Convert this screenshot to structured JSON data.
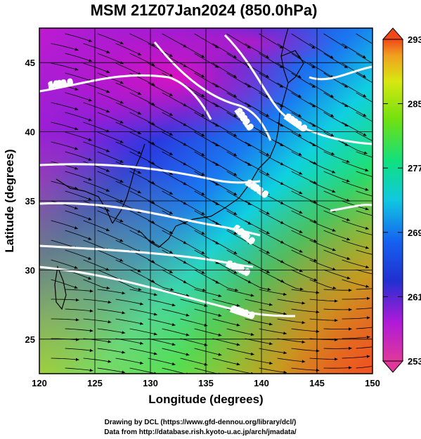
{
  "title": "MSM 21Z07Jan2024 (850.0hPa)",
  "x_axis": {
    "label": "Longitude (degrees)",
    "range": [
      120,
      150
    ],
    "ticks": [
      "120",
      "125",
      "130",
      "135",
      "140",
      "145",
      "150"
    ]
  },
  "y_axis": {
    "label": "Latitude  (degrees)",
    "range": [
      22.5,
      47.5
    ],
    "ticks": [
      "25",
      "30",
      "35",
      "40",
      "45"
    ]
  },
  "colorbar": {
    "range": [
      253,
      293
    ],
    "ticks": [
      "293",
      "285",
      "277",
      "269",
      "261",
      "253"
    ],
    "colors": [
      "#e0389a",
      "#b01ad8",
      "#2030d0",
      "#1560f0",
      "#10c8e0",
      "#10e080",
      "#70e010",
      "#d8e810",
      "#f0a020",
      "#f04818"
    ]
  },
  "contours": [
    {
      "label": "1400.0"
    },
    {
      "label": "1360.0"
    },
    {
      "label": "1320.0"
    },
    {
      "label": "1400.0"
    },
    {
      "label": "1440.0"
    },
    {
      "label": "1480.0"
    },
    {
      "label": "1520.0"
    }
  ],
  "credits": {
    "line1": "Drawing by DCL (https://www.gfd-dennou.org/library/dcl/)",
    "line2": "Data from http://database.rish.kyoto-u.ac.jp/arch/jmadata/"
  }
}
